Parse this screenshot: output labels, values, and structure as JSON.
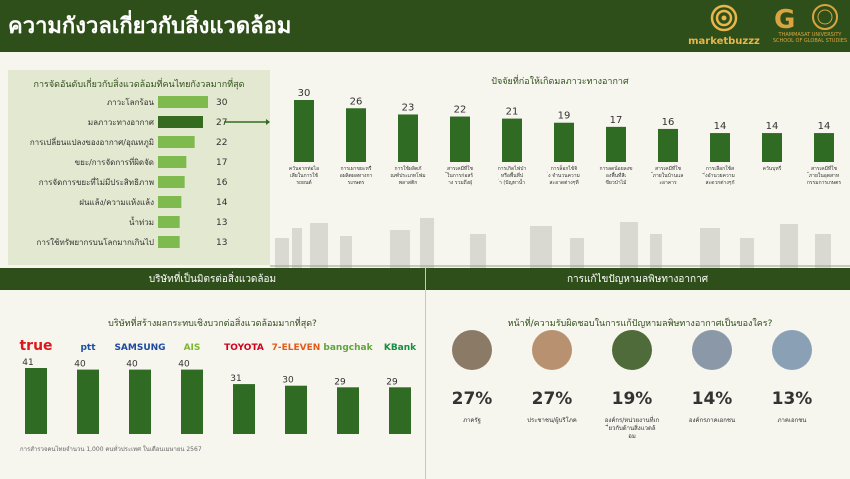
{
  "header": {
    "title": "ความกังวลเกี่ยวกับสิ่งแวดล้อม",
    "logo_marketbuzzz": "marketbuzzz",
    "logo_go_text": "THAMMASAT UNIVERSITY SCHOOL OF GLOBAL STUDIES"
  },
  "sections": {
    "ranking_title": "การจัดอันดับเกี่ยวกับสิ่งแวดล้อมที่คนไทยกังวลมากที่สุด",
    "factors_title": "ปัจจัยที่ก่อให้เกิดมลภาวะทางอากาศ",
    "companies_band": "บริษัทที่เป็นมิตรต่อสิ่งแวดล้อม",
    "companies_title": "บริษัทที่สร้างผลกระทบเชิงบวกต่อสิ่งแวดล้อมมากที่สุด?",
    "responsibility_band": "การแก้ไขปัญหามลพิษทางอากาศ",
    "responsibility_title": "หน้าที่/ความรับผิดชอบในการแก้ปัญหามลพิษทางอากาศเป็นของใคร?",
    "footnote": "การสำรวจคนไทยจำนวน 1,000 คนทั่วประเทศ ในเดือนเมษายน 2567"
  },
  "colors": {
    "dark_green": "#2f4f1a",
    "light_green": "#7fba4e",
    "bar_green": "#2f6b22",
    "mid_green": "#356b1f"
  },
  "chart_data": [
    {
      "type": "bar",
      "orientation": "horizontal",
      "categories": [
        "ภาวะโลกร้อน",
        "มลภาวะทางอากาศ",
        "การเปลี่ยนแปลงของอากาศ/อุณหภูมิ",
        "ขยะ/การจัดการที่ผิดจัด",
        "การจัดการขยะที่ไม่มีประสิทธิภาพ",
        "ฝนแล้ง/ความแห้งแล้ง",
        "น้ำท่วม",
        "การใช้ทรัพยากรบนโลกมากเกินไป"
      ],
      "values": [
        30,
        27,
        22,
        17,
        16,
        14,
        13,
        13
      ],
      "highlight_index": 1
    },
    {
      "type": "bar",
      "categories": [
        "ควันจากท่อไอเสียในการใช้รถยนต์",
        "การเผาขยะหรือผลิตผลทางการเกษตร",
        "การใช้ผลิตภัณฑ์ประเภทโฟมพลาสติก",
        "สารเคมีที่ใช้ในการก่อสร้าง รวมถึงฝุ่นควันต่างๆ",
        "การเกิดไฟป่าหรือพื้นที่ป่า (ปัญหาน้ำมันและอื่นๆ)",
        "การล็อกไข้จิ่ง จำนวนความสะอาดต่างๆที่เห็นควรแก่ปัญหา",
        "การลดน้อยลงของพื้นที่สีเขียวป่าไม้",
        "สารเคมีที่ใช้ภายในบ้านและอาคาร",
        "การเลือกใช้สิ่งอำนวยความสะดวกต่างๆกับความต้องการ",
        "ควันบุหรี่",
        "สารเคมีที่ใช้ภายในอุตสาหกรรมการเกษตร"
      ],
      "values": [
        30,
        26,
        23,
        22,
        21,
        19,
        17,
        16,
        14,
        14,
        14
      ]
    },
    {
      "type": "bar",
      "categories": [
        "true",
        "ptt",
        "SAMSUNG",
        "AIS",
        "TOYOTA",
        "7-ELEVEN",
        "bangchak",
        "KBank"
      ],
      "values": [
        41,
        40,
        40,
        40,
        31,
        30,
        29,
        29
      ]
    },
    {
      "type": "table",
      "categories": [
        "ภาครัฐ",
        "ประชาชน/ผู้บริโภค",
        "องค์กร/หน่วยงานที่เกี่ยวกับด้านสิ่งแวดล้อม",
        "องค์กรภาคเอกชน",
        "ภาคเอกชน"
      ],
      "values": [
        "27%",
        "27%",
        "19%",
        "14%",
        "13%"
      ]
    }
  ]
}
